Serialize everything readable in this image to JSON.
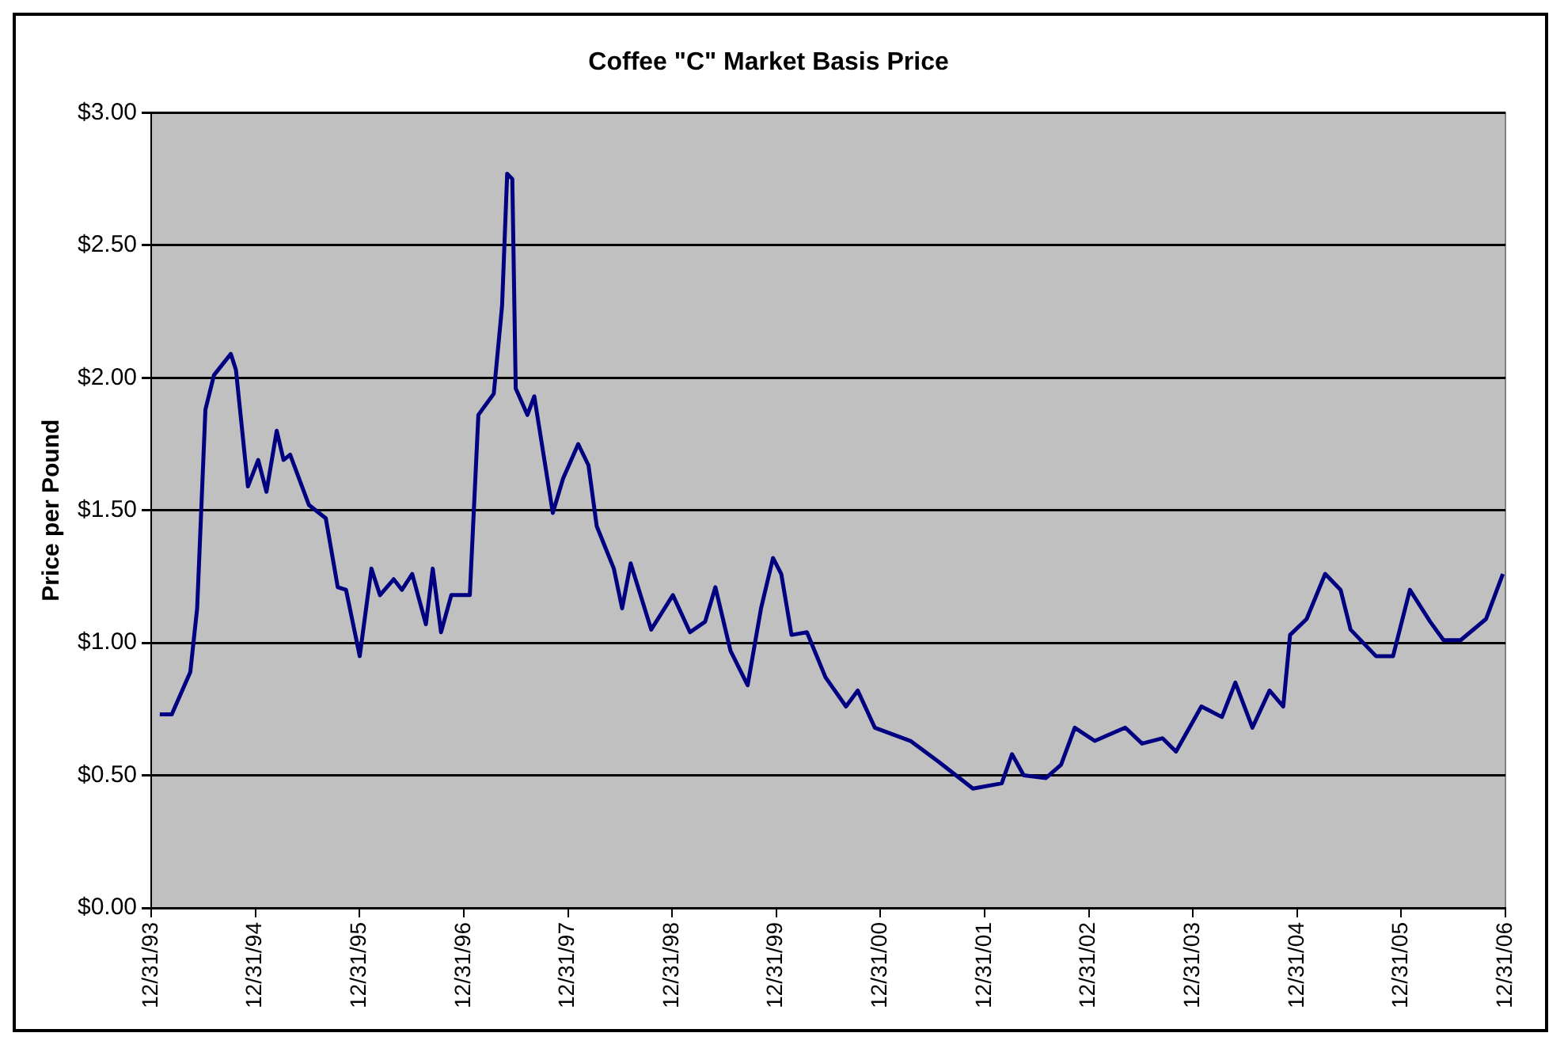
{
  "chart_data": {
    "type": "line",
    "title": "Coffee \"C\" Market Basis Price",
    "ylabel": "Price per Pound",
    "x": [
      "1994-01-30",
      "1994-03-13",
      "1994-05-17",
      "1994-06-10",
      "1994-07-09",
      "1994-08-08",
      "1994-10-06",
      "1994-10-24",
      "1994-12-05",
      "1995-01-10",
      "1995-02-08",
      "1995-03-16",
      "1995-04-09",
      "1995-05-02",
      "1995-07-07",
      "1995-09-04",
      "1995-10-16",
      "1995-11-14",
      "1996-01-01",
      "1996-02-11",
      "1996-03-12",
      "1996-04-29",
      "1996-05-28",
      "1996-07-03",
      "1996-08-20",
      "1996-09-13",
      "1996-10-12",
      "1996-11-17",
      "1997-01-21",
      "1997-02-20",
      "1997-04-15",
      "1997-05-14",
      "1997-06-01",
      "1997-06-19",
      "1997-07-01",
      "1997-08-11",
      "1997-09-04",
      "1997-11-08",
      "1997-12-14",
      "1998-02-05",
      "1998-03-13",
      "1998-04-11",
      "1998-06-10",
      "1998-07-09",
      "1998-08-08",
      "1998-10-19",
      "1999-01-03",
      "1999-03-04",
      "1999-04-26",
      "1999-06-01",
      "1999-07-24",
      "1999-09-22",
      "1999-11-08",
      "1999-12-20",
      "2000-01-18",
      "2000-02-23",
      "2000-04-17",
      "2000-06-21",
      "2000-09-01",
      "2000-10-12",
      "2000-12-11",
      "2001-04-15",
      "2001-07-24",
      "2001-11-20",
      "2002-03-01",
      "2002-04-06",
      "2002-05-17",
      "2002-08-03",
      "2002-09-25",
      "2002-11-12",
      "2003-01-21",
      "2003-05-08",
      "2003-07-06",
      "2003-09-16",
      "2003-11-02",
      "2004-01-30",
      "2004-04-11",
      "2004-05-28",
      "2004-07-27",
      "2004-09-25",
      "2004-11-12",
      "2004-12-06",
      "2005-02-02",
      "2005-04-08",
      "2005-06-01",
      "2005-07-06",
      "2005-10-03",
      "2005-12-02",
      "2006-01-30",
      "2006-04-11",
      "2006-05-28",
      "2006-07-27",
      "2006-10-24",
      "2006-12-22"
    ],
    "series": [
      {
        "color": "#000080",
        "values": [
          0.73,
          0.73,
          0.89,
          1.13,
          1.88,
          2.01,
          2.09,
          2.03,
          1.59,
          1.69,
          1.57,
          1.8,
          1.69,
          1.71,
          1.52,
          1.47,
          1.21,
          1.2,
          0.95,
          1.28,
          1.18,
          1.24,
          1.2,
          1.26,
          1.07,
          1.28,
          1.04,
          1.18,
          1.18,
          1.86,
          1.94,
          2.27,
          2.77,
          2.75,
          1.96,
          1.86,
          1.93,
          1.49,
          1.62,
          1.75,
          1.67,
          1.44,
          1.28,
          1.13,
          1.3,
          1.05,
          1.18,
          1.04,
          1.08,
          1.21,
          0.97,
          0.84,
          1.13,
          1.32,
          1.26,
          1.03,
          1.04,
          0.87,
          0.76,
          0.82,
          0.68,
          0.63,
          0.55,
          0.45,
          0.47,
          0.58,
          0.5,
          0.49,
          0.54,
          0.68,
          0.63,
          0.68,
          0.62,
          0.64,
          0.59,
          0.76,
          0.72,
          0.85,
          0.68,
          0.82,
          0.76,
          1.03,
          1.09,
          1.26,
          1.2,
          1.05,
          0.95,
          0.95,
          1.2,
          1.08,
          1.01,
          1.01,
          1.09,
          1.26
        ]
      }
    ],
    "xlim": [
      "1993-12-31",
      "2006-12-31"
    ],
    "xticks": [
      {
        "value": "1993-12-31",
        "label": "12/31/93"
      },
      {
        "value": "1994-12-31",
        "label": "12/31/94"
      },
      {
        "value": "1995-12-31",
        "label": "12/31/95"
      },
      {
        "value": "1996-12-31",
        "label": "12/31/96"
      },
      {
        "value": "1997-12-31",
        "label": "12/31/97"
      },
      {
        "value": "1998-12-31",
        "label": "12/31/98"
      },
      {
        "value": "1999-12-31",
        "label": "12/31/99"
      },
      {
        "value": "2000-12-31",
        "label": "12/31/00"
      },
      {
        "value": "2001-12-31",
        "label": "12/31/01"
      },
      {
        "value": "2002-12-31",
        "label": "12/31/02"
      },
      {
        "value": "2003-12-31",
        "label": "12/31/03"
      },
      {
        "value": "2004-12-31",
        "label": "12/31/04"
      },
      {
        "value": "2005-12-31",
        "label": "12/31/05"
      },
      {
        "value": "2006-12-31",
        "label": "12/31/06"
      }
    ],
    "ylim": [
      0,
      3
    ],
    "yticks": [
      {
        "value": 0,
        "label": "$0.00"
      },
      {
        "value": 0.5,
        "label": "$0.50"
      },
      {
        "value": 1,
        "label": "$1.00"
      },
      {
        "value": 1.5,
        "label": "$1.50"
      },
      {
        "value": 2,
        "label": "$2.00"
      },
      {
        "value": 2.5,
        "label": "$2.50"
      },
      {
        "value": 3,
        "label": "$3.00"
      }
    ],
    "grid": "y",
    "legend": false,
    "marker": "none",
    "line_style": "solid"
  }
}
